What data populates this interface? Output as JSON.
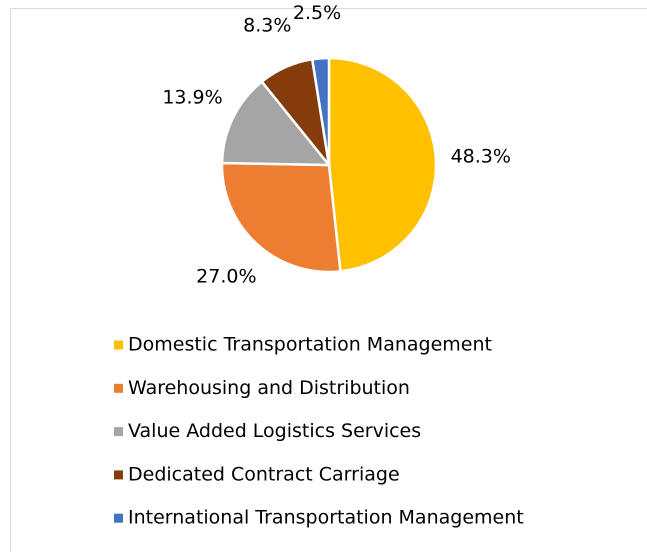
{
  "chart_data": {
    "type": "pie",
    "categories": [
      "Domestic Transportation Management",
      "Warehousing and Distribution",
      "Value Added Logistics Services",
      "Dedicated Contract Carriage",
      "International Transportation Management"
    ],
    "values": [
      48.3,
      27.0,
      13.9,
      8.3,
      2.5
    ],
    "value_labels": [
      "48.3%",
      "27.0%",
      "13.9%",
      "8.3%",
      "2.5%"
    ],
    "colors": [
      "#FFC000",
      "#ED7D31",
      "#A5A5A5",
      "#843C0C",
      "#4472C4"
    ],
    "legend": "bottom"
  }
}
